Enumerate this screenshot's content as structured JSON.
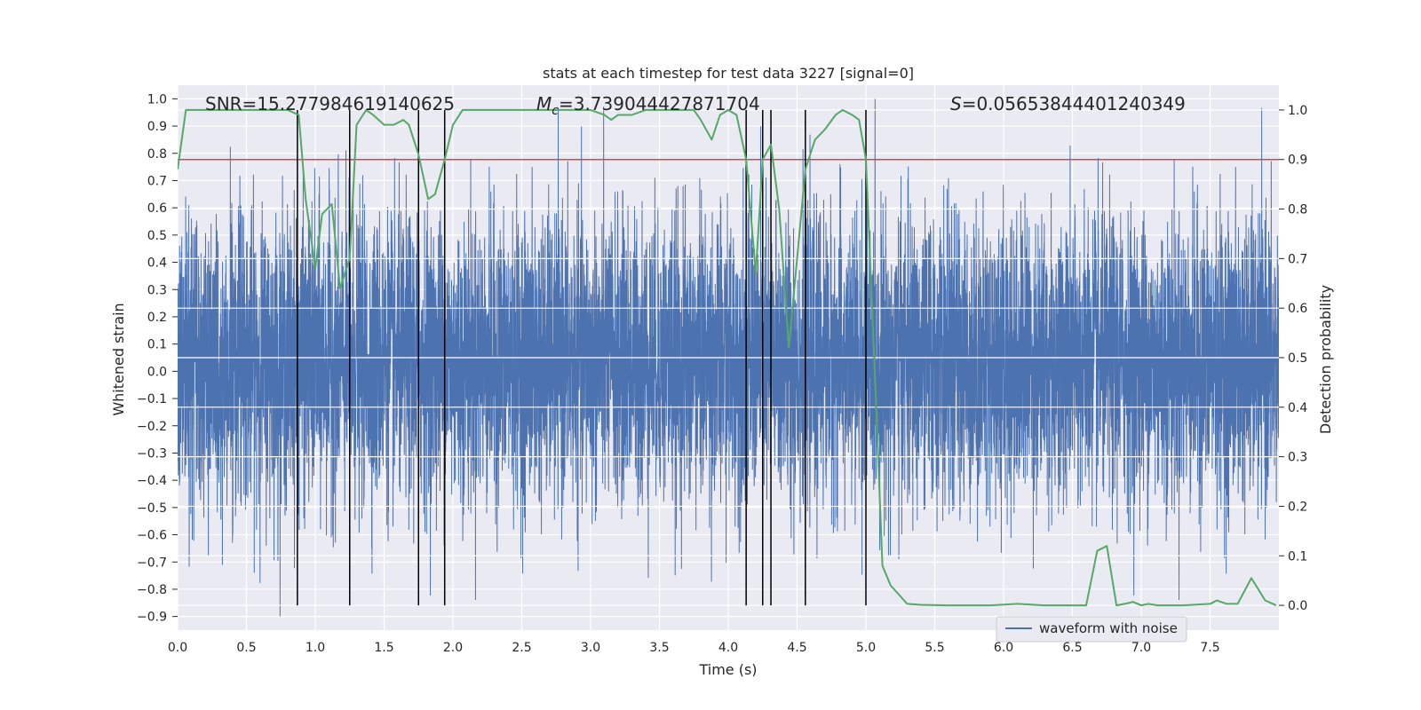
{
  "chart_data": {
    "type": "line",
    "title": "stats at each timestep for test data 3227 [signal=0]",
    "xlabel": "Time (s)",
    "ylabel": "Whitened strain",
    "y2label": "Detection probability",
    "xlim": [
      0.0,
      8.0
    ],
    "ylim": [
      -0.95,
      1.05
    ],
    "y2lim": [
      -0.05,
      1.05
    ],
    "x_ticks": [
      0.0,
      0.5,
      1.0,
      1.5,
      2.0,
      2.5,
      3.0,
      3.5,
      4.0,
      4.5,
      5.0,
      5.5,
      6.0,
      6.5,
      7.0,
      7.5
    ],
    "x_tick_labels": [
      "0.0",
      "0.5",
      "1.0",
      "1.5",
      "2.0",
      "2.5",
      "3.0",
      "3.5",
      "4.0",
      "4.5",
      "5.0",
      "5.5",
      "6.0",
      "6.5",
      "7.0",
      "7.5"
    ],
    "y_ticks": [
      -0.9,
      -0.8,
      -0.7,
      -0.6,
      -0.5,
      -0.4,
      -0.3,
      -0.2,
      -0.1,
      0.0,
      0.1,
      0.2,
      0.3,
      0.4,
      0.5,
      0.6,
      0.7,
      0.8,
      0.9,
      1.0
    ],
    "y_tick_labels": [
      "−0.9",
      "−0.8",
      "−0.7",
      "−0.6",
      "−0.5",
      "−0.4",
      "−0.3",
      "−0.2",
      "−0.1",
      "0.0",
      "0.1",
      "0.2",
      "0.3",
      "0.4",
      "0.5",
      "0.6",
      "0.7",
      "0.8",
      "0.9",
      "1.0"
    ],
    "y2_ticks": [
      0.0,
      0.1,
      0.2,
      0.3,
      0.4,
      0.5,
      0.6,
      0.7,
      0.8,
      0.9,
      1.0
    ],
    "y2_tick_labels": [
      "0.0",
      "0.1",
      "0.2",
      "0.3",
      "0.4",
      "0.5",
      "0.6",
      "0.7",
      "0.8",
      "0.9",
      "1.0"
    ],
    "grid": true,
    "legend": {
      "entries": [
        "waveform with noise"
      ],
      "placement": "lower-right"
    },
    "annotations": {
      "snr": "SNR=15.277984619140625",
      "mc_symbol": "M",
      "mc_sub": "c",
      "mc_value": "=3.739044427871704",
      "s_symbol": "S",
      "s_value": "=0.05653844401240349"
    },
    "threshold": {
      "value": 0.9,
      "axis": "y2",
      "color": "#c44e52"
    },
    "vertical_lines_x": [
      0.87,
      1.25,
      1.75,
      1.94,
      4.13,
      4.25,
      4.31,
      4.56,
      5.0
    ],
    "waveform": {
      "name": "waveform with noise",
      "color": "#4c72b0",
      "num_samples": 8192,
      "range": [
        -0.9,
        1.0
      ]
    },
    "probability_series": {
      "name": "detection probability",
      "color": "#55a868",
      "x": [
        0.0,
        0.06,
        0.12,
        0.2,
        0.3,
        0.5,
        0.7,
        0.8,
        0.88,
        0.93,
        1.0,
        1.05,
        1.12,
        1.18,
        1.25,
        1.3,
        1.37,
        1.42,
        1.5,
        1.57,
        1.64,
        1.68,
        1.75,
        1.82,
        1.87,
        1.94,
        2.0,
        2.07,
        2.14,
        2.25,
        2.4,
        2.6,
        2.8,
        3.0,
        3.1,
        3.15,
        3.2,
        3.3,
        3.4,
        3.6,
        3.75,
        3.8,
        3.88,
        3.94,
        4.0,
        4.06,
        4.13,
        4.2,
        4.25,
        4.31,
        4.37,
        4.44,
        4.5,
        4.56,
        4.63,
        4.7,
        4.78,
        4.83,
        4.9,
        4.95,
        5.0,
        5.06,
        5.12,
        5.18,
        5.3,
        5.4,
        5.6,
        5.9,
        6.1,
        6.3,
        6.5,
        6.6,
        6.68,
        6.75,
        6.82,
        6.88,
        6.94,
        7.0,
        7.05,
        7.12,
        7.3,
        7.5,
        7.55,
        7.62,
        7.7,
        7.8,
        7.9,
        7.98
      ],
      "y": [
        0.88,
        1.0,
        1.0,
        1.0,
        1.0,
        1.0,
        1.0,
        1.0,
        0.99,
        0.82,
        0.68,
        0.79,
        0.81,
        0.64,
        0.7,
        0.97,
        1.0,
        0.99,
        0.97,
        0.97,
        0.98,
        0.97,
        0.91,
        0.82,
        0.83,
        0.9,
        0.97,
        1.0,
        1.0,
        1.0,
        1.0,
        1.0,
        1.0,
        1.0,
        0.99,
        0.98,
        0.99,
        0.99,
        1.0,
        1.0,
        1.0,
        0.98,
        0.94,
        0.99,
        1.0,
        0.99,
        0.9,
        0.67,
        0.9,
        0.93,
        0.8,
        0.52,
        0.7,
        0.88,
        0.94,
        0.96,
        0.99,
        1.0,
        0.99,
        0.98,
        0.9,
        0.5,
        0.08,
        0.04,
        0.003,
        0.001,
        0.0,
        0.0,
        0.003,
        0.0,
        0.0,
        0.0,
        0.11,
        0.12,
        0.0,
        0.003,
        0.007,
        0.0,
        0.003,
        0.0,
        0.0,
        0.003,
        0.01,
        0.003,
        0.003,
        0.055,
        0.01,
        0.0
      ]
    }
  }
}
